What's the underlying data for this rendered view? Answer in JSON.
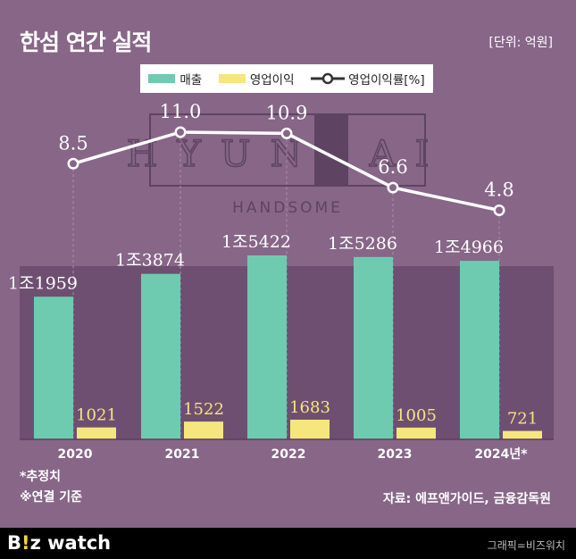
{
  "title": "한섬 연간 실적",
  "unit": "[단위: 억원]",
  "legend": {
    "sales": "매출",
    "op": "영업이익",
    "margin": "영업이익률[%]"
  },
  "watermark": {
    "main": "HYUNDAI",
    "sub": "HANDSOME"
  },
  "notes": {
    "estimate": "*추정치",
    "consolidated": "※연결 기준"
  },
  "source": "자료: 에프앤가이드, 금융감독원",
  "footer": {
    "brand_a": "B",
    "brand_b": "!",
    "brand_c": "z watch",
    "credit": "그래픽=비즈워치"
  },
  "colors": {
    "background": "#876688",
    "plot_band": "#6e4f72",
    "sales": "#6ecbb0",
    "op": "#f5e67d",
    "line": "#ffffff"
  },
  "chart_data": {
    "type": "bar",
    "categories": [
      "2020",
      "2021",
      "2022",
      "2023",
      "2024년*"
    ],
    "series": [
      {
        "name": "매출",
        "values": [
          11959,
          13874,
          15422,
          15286,
          14966
        ],
        "labels": [
          "1조1959",
          "1조3874",
          "1조5422",
          "1조5286",
          "1조4966"
        ]
      },
      {
        "name": "영업이익",
        "values": [
          1021,
          1522,
          1683,
          1005,
          721
        ],
        "labels": [
          "1021",
          "1522",
          "1683",
          "1005",
          "721"
        ]
      }
    ],
    "line_series": {
      "name": "영업이익률[%]",
      "values": [
        8.5,
        11.0,
        10.9,
        6.6,
        4.8
      ],
      "labels": [
        "8.5",
        "11.0",
        "10.9",
        "6.6",
        "4.8"
      ]
    }
  }
}
